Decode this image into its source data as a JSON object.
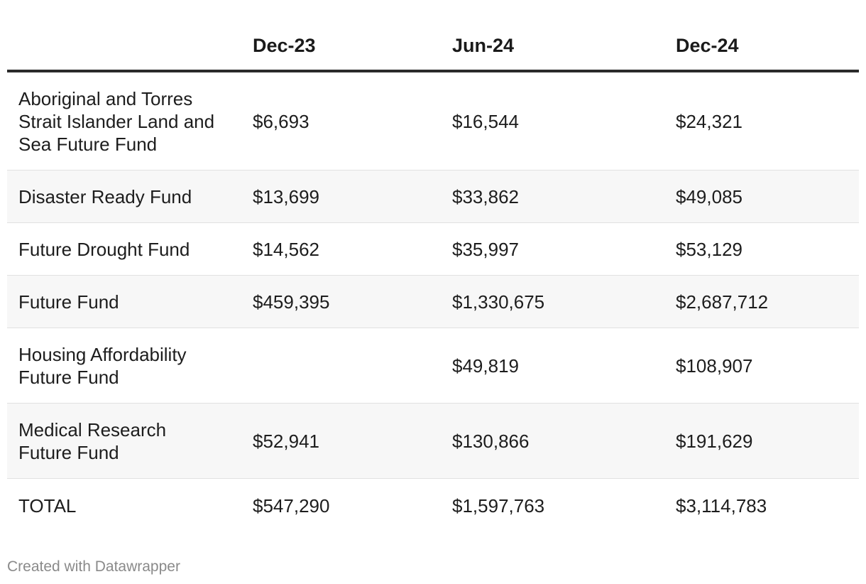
{
  "chart_data": {
    "type": "table",
    "columns": [
      "",
      "Dec-23",
      "Jun-24",
      "Dec-24"
    ],
    "rows": [
      [
        "Aboriginal and Torres Strait Islander Land and Sea Future Fund",
        "$6,693",
        "$16,544",
        "$24,321"
      ],
      [
        "Disaster Ready Fund",
        "$13,699",
        "$33,862",
        "$49,085"
      ],
      [
        "Future Drought Fund",
        "$14,562",
        "$35,997",
        "$53,129"
      ],
      [
        "Future Fund",
        "$459,395",
        "$1,330,675",
        "$2,687,712"
      ],
      [
        "Housing Affordability Future Fund",
        "",
        "$49,819",
        "$108,907"
      ],
      [
        "Medical Research Future Fund",
        "$52,941",
        "$130,866",
        "$191,629"
      ],
      [
        "TOTAL",
        "$547,290",
        "$1,597,763",
        "$3,114,783"
      ]
    ]
  },
  "footer": {
    "credit": "Created with Datawrapper"
  }
}
